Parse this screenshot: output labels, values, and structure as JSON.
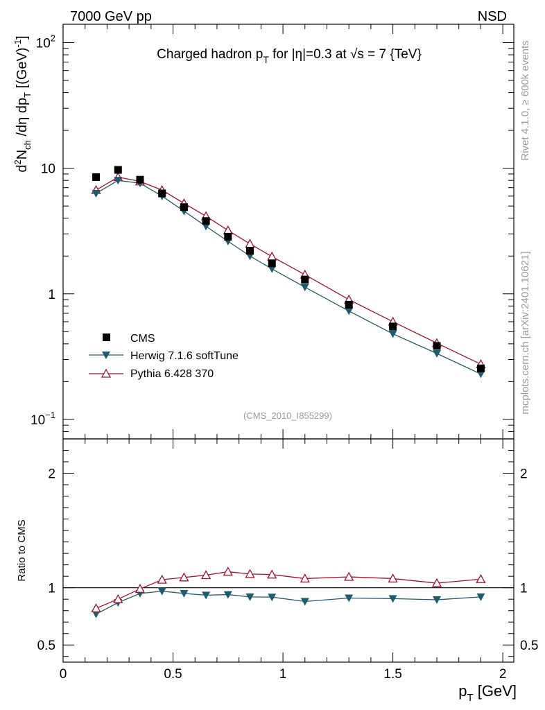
{
  "header": {
    "energy_label": "7000 GeV pp",
    "process_label": "NSD"
  },
  "side_labels": {
    "rivet": "Rivet 4.1.0, ≥ 600k events",
    "mcplots": "mcplots.cern.ch [arXiv:2401.10621]"
  },
  "analysis_id": "(CMS_2010_I855299)",
  "colors": {
    "data": "#000000",
    "herwig": "#1f5a6e",
    "pythia": "#a01030"
  },
  "chart_data": [
    {
      "type": "scatter",
      "panel": "main",
      "title": "Charged hadron pT for |η|=0.3 at √s = 7 {TeV}",
      "title_parts": {
        "a": "Charged hadron p",
        "sub": "T",
        "b": " for |η|=0.3 at √s = 7 {TeV}"
      },
      "ylabel": "d²N_ch /dη dp_T [(GeV)⁻¹]",
      "yscale": "log",
      "xlim": [
        0,
        2.05
      ],
      "ylim": [
        0.07,
        140
      ],
      "yticks": [
        {
          "value": 100,
          "base": "10",
          "exp": "2"
        },
        {
          "value": 10,
          "base": "10",
          "exp": ""
        },
        {
          "value": 1,
          "base": "1",
          "exp": ""
        },
        {
          "value": 0.1,
          "base": "10",
          "exp": "−1"
        }
      ],
      "legend_position": "lower-left",
      "x": [
        0.15,
        0.25,
        0.35,
        0.45,
        0.55,
        0.65,
        0.75,
        0.85,
        0.95,
        1.1,
        1.3,
        1.5,
        1.7,
        1.9
      ],
      "series": [
        {
          "name": "CMS",
          "marker": "square",
          "line": false,
          "values": [
            8.5,
            9.7,
            8.1,
            6.3,
            4.9,
            3.8,
            2.85,
            2.2,
            1.75,
            1.3,
            0.82,
            0.55,
            0.385,
            0.255
          ]
        },
        {
          "name": "Herwig 7.1.6 softTune",
          "marker": "triangle-down",
          "line": true,
          "values": [
            6.3,
            8.0,
            7.6,
            6.0,
            4.55,
            3.45,
            2.62,
            2.0,
            1.58,
            1.13,
            0.73,
            0.48,
            0.335,
            0.23
          ]
        },
        {
          "name": "Pythia 6.428 370",
          "marker": "triangle-up-open",
          "line": true,
          "values": [
            6.7,
            8.5,
            7.85,
            6.7,
            5.25,
            4.15,
            3.2,
            2.5,
            1.98,
            1.42,
            0.9,
            0.6,
            0.405,
            0.275
          ]
        }
      ]
    },
    {
      "type": "line",
      "panel": "ratio",
      "ylabel": "Ratio to CMS",
      "xlabel": "p_T [GeV]",
      "xlabel_parts": {
        "a": "p",
        "sub": "T",
        "b": " [GeV]"
      },
      "xlim": [
        0,
        2.05
      ],
      "ylim": [
        0.35,
        2.3
      ],
      "reference_line": 1,
      "xticks": [
        {
          "value": 0,
          "label": "0"
        },
        {
          "value": 0.5,
          "label": "0.5"
        },
        {
          "value": 1,
          "label": "1"
        },
        {
          "value": 1.5,
          "label": "1.5"
        },
        {
          "value": 2,
          "label": "2"
        }
      ],
      "yticks": [
        {
          "value": 2,
          "label": "2"
        },
        {
          "value": 1,
          "label": "1"
        },
        {
          "value": 0.5,
          "label": "0.5"
        }
      ],
      "x": [
        0.15,
        0.25,
        0.35,
        0.45,
        0.55,
        0.65,
        0.75,
        0.85,
        0.95,
        1.1,
        1.3,
        1.5,
        1.7,
        1.9
      ],
      "series": [
        {
          "name": "Herwig 7.1.6 softTune",
          "marker": "triangle-down",
          "values": [
            0.77,
            0.87,
            0.95,
            0.97,
            0.95,
            0.935,
            0.94,
            0.92,
            0.918,
            0.88,
            0.91,
            0.905,
            0.895,
            0.92
          ]
        },
        {
          "name": "Pythia 6.428 370",
          "marker": "triangle-up-open",
          "values": [
            0.82,
            0.9,
            0.99,
            1.07,
            1.09,
            1.11,
            1.14,
            1.12,
            1.115,
            1.08,
            1.095,
            1.08,
            1.04,
            1.075
          ]
        }
      ]
    }
  ]
}
